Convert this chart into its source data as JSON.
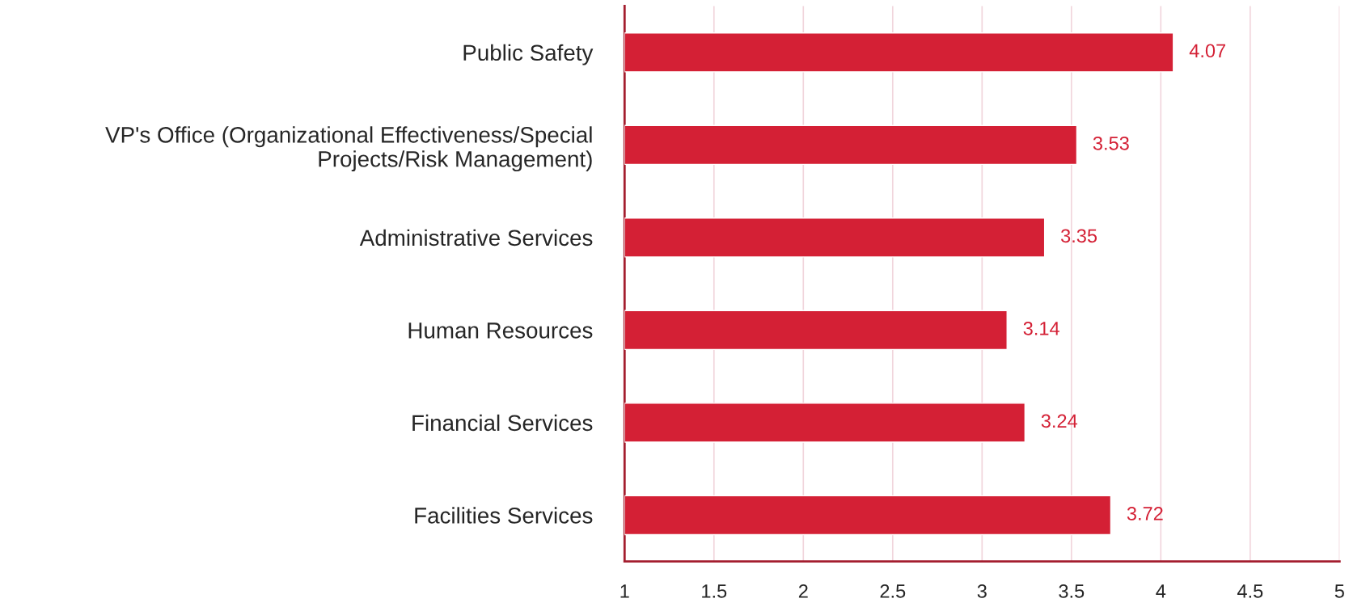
{
  "chart_data": {
    "type": "bar",
    "orientation": "horizontal",
    "categories": [
      "Public Safety",
      "VP's Office (Organizational Effectiveness/Special\nProjects/Risk Management)",
      "Administrative Services",
      "Human Resources",
      "Financial Services",
      "Facilities Services"
    ],
    "values": [
      4.07,
      3.53,
      3.35,
      3.14,
      3.24,
      3.72
    ],
    "color": "#d42035",
    "xlim": [
      1,
      5
    ],
    "xticks": [
      1,
      1.5,
      2,
      2.5,
      3,
      3.5,
      4,
      4.5,
      5
    ],
    "grid": "x",
    "data_labels": true,
    "legend": false
  }
}
